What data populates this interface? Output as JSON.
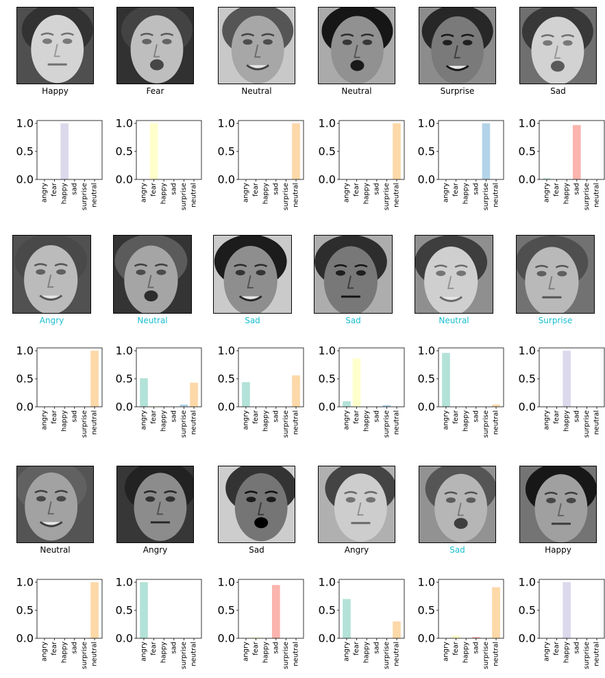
{
  "colors": {
    "correct_label": "#000000",
    "wrong_label": "#17becf",
    "bar_palette": {
      "angry": "#b3e2d8",
      "fear": "#ffffcc",
      "happy": "#dcd9ec",
      "sad": "#fbb4ae",
      "surprise": "#b3d3e8",
      "neutral": "#fdd8a8"
    }
  },
  "chart_data": {
    "type": "bar",
    "categories": [
      "angry",
      "fear",
      "happy",
      "sad",
      "surprise",
      "neutral"
    ],
    "y_ticks": [
      "0.0",
      "0.5",
      "1.0"
    ],
    "ylim": [
      0,
      1.0
    ],
    "grid": false,
    "panels": [
      {
        "label": "Happy",
        "label_color": "correct",
        "values": [
          0,
          0,
          1.0,
          0,
          0,
          0
        ]
      },
      {
        "label": "Fear",
        "label_color": "correct",
        "values": [
          0,
          1.0,
          0,
          0,
          0,
          0
        ]
      },
      {
        "label": "Neutral",
        "label_color": "correct",
        "values": [
          0,
          0,
          0,
          0,
          0,
          1.0
        ]
      },
      {
        "label": "Neutral",
        "label_color": "correct",
        "values": [
          0,
          0,
          0,
          0,
          0,
          1.0
        ]
      },
      {
        "label": "Surprise",
        "label_color": "correct",
        "values": [
          0,
          0,
          0,
          0,
          1.0,
          0
        ]
      },
      {
        "label": "Sad",
        "label_color": "correct",
        "values": [
          0.02,
          0,
          0,
          0.97,
          0,
          0
        ]
      },
      {
        "label": "Angry",
        "label_color": "wrong",
        "values": [
          0,
          0,
          0,
          0,
          0,
          1.0
        ]
      },
      {
        "label": "Neutral",
        "label_color": "wrong",
        "values": [
          0.51,
          0.01,
          0.01,
          0,
          0.04,
          0.43
        ]
      },
      {
        "label": "Sad",
        "label_color": "wrong",
        "values": [
          0.44,
          0,
          0,
          0,
          0,
          0.56
        ]
      },
      {
        "label": "Sad",
        "label_color": "wrong",
        "values": [
          0.1,
          0.86,
          0,
          0,
          0.03,
          0
        ]
      },
      {
        "label": "Neutral",
        "label_color": "wrong",
        "values": [
          0.96,
          0,
          0,
          0,
          0,
          0.04
        ]
      },
      {
        "label": "Surprise",
        "label_color": "wrong",
        "values": [
          0,
          0,
          1.0,
          0,
          0,
          0
        ]
      },
      {
        "label": "Neutral",
        "label_color": "correct",
        "values": [
          0,
          0,
          0,
          0,
          0,
          1.0
        ]
      },
      {
        "label": "Angry",
        "label_color": "correct",
        "values": [
          1.0,
          0,
          0,
          0,
          0,
          0
        ]
      },
      {
        "label": "Sad",
        "label_color": "correct",
        "values": [
          0,
          0.02,
          0,
          0.95,
          0,
          0
        ]
      },
      {
        "label": "Angry",
        "label_color": "correct",
        "values": [
          0.7,
          0,
          0,
          0,
          0,
          0.3
        ]
      },
      {
        "label": "Sad",
        "label_color": "wrong",
        "values": [
          0,
          0.05,
          0,
          0.02,
          0,
          0.91
        ]
      },
      {
        "label": "Happy",
        "label_color": "correct",
        "values": [
          0,
          0,
          1.0,
          0,
          0,
          0
        ]
      }
    ]
  }
}
